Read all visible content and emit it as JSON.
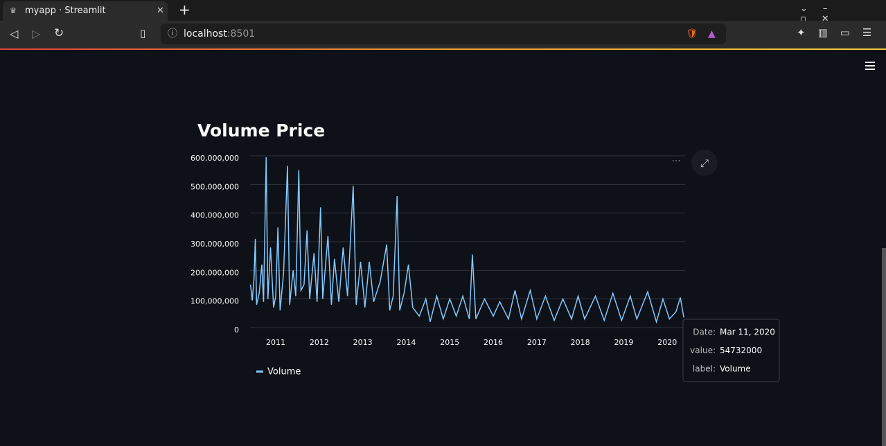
{
  "browser": {
    "tab_title": "myapp · Streamlit",
    "url_host": "localhost",
    "url_port": ":8501"
  },
  "chart_data": {
    "type": "line",
    "title": "Volume Price",
    "x": [
      2010.42,
      2010.46,
      2010.5,
      2010.53,
      2010.56,
      2010.62,
      2010.68,
      2010.72,
      2010.78,
      2010.82,
      2010.88,
      2010.95,
      2011.0,
      2011.05,
      2011.1,
      2011.18,
      2011.27,
      2011.32,
      2011.4,
      2011.46,
      2011.53,
      2011.58,
      2011.65,
      2011.72,
      2011.78,
      2011.88,
      2011.95,
      2012.03,
      2012.08,
      2012.2,
      2012.28,
      2012.35,
      2012.45,
      2012.55,
      2012.65,
      2012.78,
      2012.85,
      2012.95,
      2013.05,
      2013.15,
      2013.25,
      2013.4,
      2013.55,
      2013.62,
      2013.7,
      2013.79,
      2013.85,
      2013.95,
      2014.05,
      2014.15,
      2014.3,
      2014.45,
      2014.55,
      2014.7,
      2014.85,
      2015.0,
      2015.15,
      2015.3,
      2015.45,
      2015.52,
      2015.6,
      2015.8,
      2016.0,
      2016.15,
      2016.35,
      2016.5,
      2016.65,
      2016.85,
      2017.0,
      2017.2,
      2017.4,
      2017.6,
      2017.8,
      2017.95,
      2018.1,
      2018.35,
      2018.55,
      2018.75,
      2018.95,
      2019.15,
      2019.3,
      2019.55,
      2019.75,
      2019.9,
      2020.05,
      2020.2,
      2020.3,
      2020.38
    ],
    "series": [
      {
        "name": "Volume",
        "color": "#83c9ff",
        "values": [
          150000000,
          95000000,
          170000000,
          310000000,
          80000000,
          120000000,
          220000000,
          90000000,
          595000000,
          100000000,
          280000000,
          70000000,
          110000000,
          350000000,
          60000000,
          190000000,
          565000000,
          80000000,
          200000000,
          110000000,
          550000000,
          130000000,
          150000000,
          340000000,
          100000000,
          260000000,
          90000000,
          420000000,
          100000000,
          320000000,
          80000000,
          240000000,
          90000000,
          280000000,
          110000000,
          495000000,
          80000000,
          230000000,
          70000000,
          230000000,
          90000000,
          160000000,
          290000000,
          60000000,
          110000000,
          460000000,
          60000000,
          120000000,
          220000000,
          70000000,
          40000000,
          100000000,
          20000000,
          110000000,
          30000000,
          100000000,
          40000000,
          110000000,
          30000000,
          255000000,
          30000000,
          100000000,
          40000000,
          90000000,
          30000000,
          130000000,
          30000000,
          130000000,
          30000000,
          110000000,
          25000000,
          100000000,
          30000000,
          110000000,
          30000000,
          110000000,
          25000000,
          120000000,
          25000000,
          110000000,
          30000000,
          125000000,
          20000000,
          100000000,
          30000000,
          55000000,
          105000000,
          35000000
        ]
      }
    ],
    "xlim": [
      2010.41,
      2020.41
    ],
    "xticks": [
      2011,
      2012,
      2013,
      2014,
      2015,
      2016,
      2017,
      2018,
      2019,
      2020
    ],
    "ylim": [
      0,
      600000000
    ],
    "yticks": [
      0,
      {
        "value": 100000000,
        "label": "100,000,000"
      },
      {
        "value": 200000000,
        "label": "200,000,000"
      },
      {
        "value": 300000000,
        "label": "300,000,000"
      },
      {
        "value": 400000000,
        "label": "400,000,000"
      },
      {
        "value": 500000000,
        "label": "500,000,000"
      },
      {
        "value": 600000000,
        "label": "600,000,000"
      }
    ],
    "grid": true,
    "tooltip": {
      "rows": [
        [
          "Date:",
          "Mar 11, 2020"
        ],
        [
          "value:",
          "54732000"
        ],
        [
          "label:",
          "Volume"
        ]
      ]
    }
  }
}
